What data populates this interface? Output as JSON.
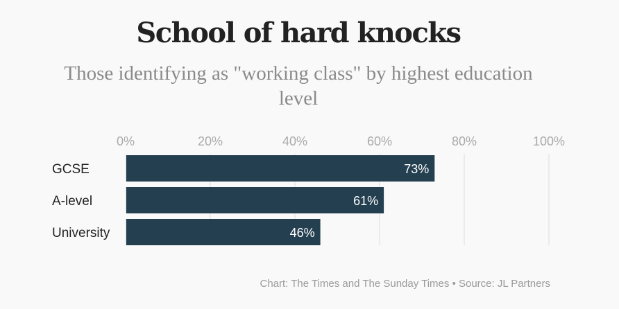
{
  "chart_data": {
    "type": "bar",
    "orientation": "horizontal",
    "title": "School of hard knocks",
    "subtitle": "Those identifying as \"working class\" by highest education level",
    "categories": [
      "GCSE",
      "A-level",
      "University"
    ],
    "values": [
      73,
      61,
      46
    ],
    "value_labels": [
      "73%",
      "61%",
      "46%"
    ],
    "x_ticks": [
      0,
      20,
      40,
      60,
      80,
      100
    ],
    "x_tick_labels": [
      "0%",
      "20%",
      "40%",
      "60%",
      "80%",
      "100%"
    ],
    "xlim": [
      0,
      100
    ],
    "xlabel": "",
    "ylabel": "",
    "grid": true,
    "legend": "none",
    "colors": {
      "bar": "#243f50",
      "grid": "#dddddd",
      "tick_text": "#aaaaaa",
      "category_text": "#222222",
      "data_label_text": "#ffffff",
      "title": "#222222",
      "subtitle": "#8a8a8a",
      "source": "#9a9a9a",
      "background": "#f9f9f9"
    },
    "source": "Chart: The Times and The Sunday Times • Source: JL Partners"
  }
}
